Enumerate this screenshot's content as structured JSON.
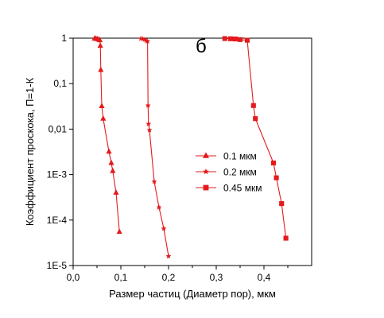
{
  "chart_data": {
    "type": "scatter",
    "panel_label": "б",
    "xlabel": "Размер частиц (Диаметр пор), мкм",
    "ylabel": "Коэффициент проскока, П=1-К",
    "xlim": [
      0,
      0.5
    ],
    "ylim": [
      1e-05,
      1
    ],
    "y_scale": "log",
    "grid": false,
    "legend_position": "center-right",
    "x_tick_labels": [
      "0,0",
      "0,1",
      "0,2",
      "0,3",
      "0,4"
    ],
    "x_tick_values": [
      0,
      0.1,
      0.2,
      0.3,
      0.4
    ],
    "y_tick_labels": [
      "1E-5",
      "1E-4",
      "1E-3",
      "0,01",
      "0,1",
      "1"
    ],
    "y_tick_values": [
      1e-05,
      0.0001,
      0.001,
      0.01,
      0.1,
      1
    ],
    "color": "#e41a1c",
    "series": [
      {
        "name": "0.1 мкм",
        "marker": "triangle",
        "x": [
          0.045,
          0.048,
          0.051,
          0.054,
          0.056,
          0.057,
          0.058,
          0.06,
          0.063,
          0.075,
          0.08,
          0.083,
          0.09,
          0.097
        ],
        "y": [
          0.98,
          0.97,
          0.95,
          0.93,
          0.9,
          0.68,
          0.2,
          0.032,
          0.017,
          0.0032,
          0.0018,
          0.0012,
          0.0004,
          5.5e-05
        ]
      },
      {
        "name": "0.2 мкм",
        "marker": "star",
        "x": [
          0.142,
          0.146,
          0.15,
          0.153,
          0.156,
          0.157,
          0.158,
          0.16,
          0.17,
          0.18,
          0.19,
          0.2
        ],
        "y": [
          0.98,
          0.96,
          0.93,
          0.88,
          0.85,
          0.033,
          0.013,
          0.0095,
          0.0007,
          0.00019,
          6.5e-05,
          1.6e-05
        ]
      },
      {
        "name": "0.45 мкм",
        "marker": "square",
        "x": [
          0.318,
          0.33,
          0.34,
          0.35,
          0.365,
          0.378,
          0.382,
          0.42,
          0.426,
          0.437,
          0.446
        ],
        "y": [
          0.98,
          0.97,
          0.96,
          0.93,
          0.9,
          0.033,
          0.017,
          0.0018,
          0.00085,
          0.00023,
          4e-05
        ]
      }
    ]
  }
}
